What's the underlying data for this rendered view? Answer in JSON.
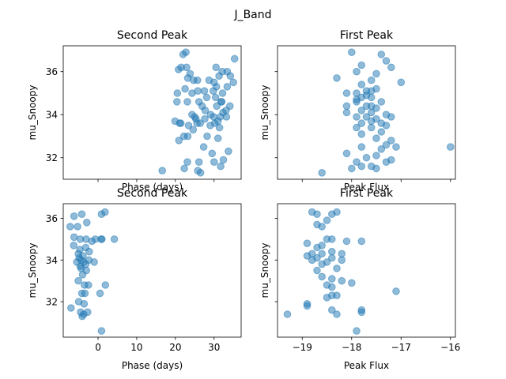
{
  "figure": {
    "suptitle": "J_Band"
  },
  "style": {
    "marker_color": "#1f77b4",
    "marker_alpha": 0.5
  },
  "chart_data": [
    {
      "type": "scatter",
      "title": "Second Peak",
      "xlabel": "Phase (days)",
      "ylabel": "mu_Snoopy",
      "xlim": [
        -9,
        37
      ],
      "ylim": [
        31.0,
        37.2
      ],
      "xticks": [
        0,
        10,
        20,
        30
      ],
      "xticklabels": [
        "",
        "",
        "",
        ""
      ],
      "yticks": [
        32,
        34,
        36
      ],
      "yticklabels": [
        "32",
        "34",
        "36"
      ],
      "points": [
        [
          16.6,
          31.4
        ],
        [
          22.0,
          36.8
        ],
        [
          22.7,
          36.9
        ],
        [
          20.8,
          36.1
        ],
        [
          21.5,
          36.2
        ],
        [
          22.9,
          36.2
        ],
        [
          23.8,
          35.9
        ],
        [
          23.2,
          35.7
        ],
        [
          24.7,
          35.6
        ],
        [
          25.7,
          35.6
        ],
        [
          20.4,
          34.6
        ],
        [
          22.5,
          35.2
        ],
        [
          24.3,
          35.0
        ],
        [
          25.8,
          35.1
        ],
        [
          23.1,
          34.6
        ],
        [
          26.1,
          34.6
        ],
        [
          27.5,
          35.1
        ],
        [
          28.1,
          34.8
        ],
        [
          26.9,
          34.4
        ],
        [
          27.7,
          34.2
        ],
        [
          19.9,
          33.7
        ],
        [
          21.1,
          33.6
        ],
        [
          21.4,
          33.6
        ],
        [
          23.4,
          33.5
        ],
        [
          24.3,
          34.0
        ],
        [
          25.0,
          33.9
        ],
        [
          25.3,
          33.8
        ],
        [
          25.6,
          33.6
        ],
        [
          26.4,
          33.6
        ],
        [
          29.1,
          34.0
        ],
        [
          29.9,
          33.9
        ],
        [
          30.2,
          33.6
        ],
        [
          31.0,
          33.7
        ],
        [
          31.6,
          33.9
        ],
        [
          32.3,
          34.1
        ],
        [
          33.1,
          34.2
        ],
        [
          34.1,
          34.4
        ],
        [
          30.7,
          34.4
        ],
        [
          30.4,
          34.8
        ],
        [
          30.6,
          35.3
        ],
        [
          31.8,
          34.6
        ],
        [
          32.2,
          35.0
        ],
        [
          30.0,
          35.5
        ],
        [
          31.3,
          35.8
        ],
        [
          33.4,
          35.3
        ],
        [
          35.0,
          35.5
        ],
        [
          34.2,
          35.8
        ],
        [
          30.5,
          36.2
        ],
        [
          32.1,
          36.0
        ],
        [
          33.4,
          36.0
        ],
        [
          35.3,
          36.6
        ],
        [
          20.9,
          32.8
        ],
        [
          22.2,
          33.0
        ],
        [
          23.2,
          33.0
        ],
        [
          24.6,
          33.3
        ],
        [
          28.2,
          33.0
        ],
        [
          27.3,
          32.5
        ],
        [
          29.5,
          32.2
        ],
        [
          33.7,
          32.3
        ],
        [
          23.1,
          31.8
        ],
        [
          26.1,
          31.8
        ],
        [
          30.0,
          31.8
        ],
        [
          31.7,
          31.6
        ],
        [
          32.4,
          31.9
        ],
        [
          26.5,
          31.3
        ],
        [
          25.8,
          31.4
        ],
        [
          22.3,
          31.5
        ],
        [
          20.5,
          35.0
        ],
        [
          27.6,
          33.8
        ],
        [
          29.0,
          33.5
        ],
        [
          31.4,
          33.4
        ],
        [
          32.0,
          34.6
        ],
        [
          28.7,
          35.6
        ],
        [
          29.8,
          35.1
        ],
        [
          33.2,
          33.9
        ],
        [
          31.0,
          32.9
        ]
      ]
    },
    {
      "type": "scatter",
      "title": "First Peak",
      "xlabel": "Peak Flux",
      "ylabel": "mu_Snoopy",
      "xlim": [
        -19.5,
        -15.9
      ],
      "ylim": [
        31.0,
        37.2
      ],
      "xticks": [
        -19,
        -18,
        -17,
        -16
      ],
      "xticklabels": [
        "",
        "",
        "",
        ""
      ],
      "yticks": [
        32,
        34,
        36
      ],
      "yticklabels": [
        "",
        "",
        ""
      ],
      "points": [
        [
          -18.0,
          36.9
        ],
        [
          -17.4,
          36.8
        ],
        [
          -17.2,
          36.2
        ],
        [
          -17.8,
          36.3
        ],
        [
          -17.9,
          36.0
        ],
        [
          -17.5,
          35.9
        ],
        [
          -17.6,
          35.6
        ],
        [
          -17.0,
          35.5
        ],
        [
          -18.3,
          35.7
        ],
        [
          -17.8,
          35.4
        ],
        [
          -17.6,
          35.1
        ],
        [
          -17.7,
          35.1
        ],
        [
          -18.1,
          35.0
        ],
        [
          -17.9,
          35.0
        ],
        [
          -17.8,
          34.8
        ],
        [
          -17.6,
          34.8
        ],
        [
          -17.4,
          34.6
        ],
        [
          -17.9,
          34.6
        ],
        [
          -17.7,
          34.4
        ],
        [
          -18.1,
          34.4
        ],
        [
          -17.5,
          34.3
        ],
        [
          -17.8,
          34.2
        ],
        [
          -17.6,
          34.1
        ],
        [
          -17.3,
          34.0
        ],
        [
          -17.9,
          33.9
        ],
        [
          -18.1,
          34.1
        ],
        [
          -17.7,
          33.9
        ],
        [
          -17.5,
          33.8
        ],
        [
          -17.6,
          33.7
        ],
        [
          -17.4,
          33.6
        ],
        [
          -17.8,
          33.6
        ],
        [
          -17.2,
          33.9
        ],
        [
          -17.3,
          33.5
        ],
        [
          -17.9,
          33.4
        ],
        [
          -17.6,
          33.4
        ],
        [
          -17.4,
          33.2
        ],
        [
          -17.8,
          33.1
        ],
        [
          -17.2,
          32.8
        ],
        [
          -17.5,
          32.9
        ],
        [
          -17.3,
          32.6
        ],
        [
          -17.1,
          32.5
        ],
        [
          -17.8,
          32.5
        ],
        [
          -17.4,
          32.4
        ],
        [
          -18.1,
          32.2
        ],
        [
          -17.7,
          32.0
        ],
        [
          -17.9,
          31.8
        ],
        [
          -17.6,
          31.6
        ],
        [
          -17.3,
          31.8
        ],
        [
          -17.5,
          31.5
        ],
        [
          -17.8,
          31.6
        ],
        [
          -18.0,
          31.5
        ],
        [
          -17.2,
          31.9
        ],
        [
          -16.0,
          32.5
        ],
        [
          -18.6,
          31.3
        ],
        [
          -17.5,
          32.1
        ],
        [
          -17.7,
          34.9
        ],
        [
          -17.5,
          35.2
        ],
        [
          -17.3,
          36.5
        ],
        [
          -17.9,
          34.7
        ],
        [
          -17.6,
          34.4
        ]
      ]
    },
    {
      "type": "scatter",
      "title": "Second Peak",
      "xlabel": "Phase (days)",
      "ylabel": "mu_Snoopy",
      "xlim": [
        -9,
        37
      ],
      "ylim": [
        30.3,
        36.7
      ],
      "xticks": [
        0,
        10,
        20,
        30
      ],
      "xticklabels": [
        "0",
        "10",
        "20",
        "30"
      ],
      "yticks": [
        32,
        34,
        36
      ],
      "yticklabels": [
        "32",
        "34",
        "36"
      ],
      "points": [
        [
          -6.2,
          36.1
        ],
        [
          -4.2,
          36.2
        ],
        [
          -2.9,
          35.8
        ],
        [
          0.9,
          36.2
        ],
        [
          1.8,
          36.3
        ],
        [
          -7.2,
          35.6
        ],
        [
          -5.3,
          35.6
        ],
        [
          -6.2,
          35.1
        ],
        [
          -4.6,
          35.0
        ],
        [
          -3.1,
          35.0
        ],
        [
          -1.6,
          34.9
        ],
        [
          -0.7,
          35.0
        ],
        [
          0.8,
          35.0
        ],
        [
          1.0,
          35.0
        ],
        [
          -6.3,
          34.7
        ],
        [
          -4.7,
          34.5
        ],
        [
          -3.2,
          34.6
        ],
        [
          -2.3,
          34.4
        ],
        [
          -5.1,
          34.3
        ],
        [
          -4.9,
          34.1
        ],
        [
          -4.4,
          34.0
        ],
        [
          -3.9,
          34.2
        ],
        [
          -5.5,
          33.9
        ],
        [
          -4.6,
          33.7
        ],
        [
          -3.7,
          33.9
        ],
        [
          -2.4,
          34.0
        ],
        [
          -1.0,
          33.9
        ],
        [
          -3.0,
          33.5
        ],
        [
          -4.0,
          33.3
        ],
        [
          -4.4,
          33.6
        ],
        [
          -5.1,
          33.0
        ],
        [
          -3.5,
          32.8
        ],
        [
          -2.5,
          32.8
        ],
        [
          -4.2,
          32.4
        ],
        [
          -3.4,
          32.4
        ],
        [
          -3.6,
          31.9
        ],
        [
          -4.5,
          31.5
        ],
        [
          -4.1,
          31.3
        ],
        [
          -3.7,
          31.4
        ],
        [
          -7.0,
          31.7
        ],
        [
          0.5,
          32.4
        ],
        [
          1.9,
          32.8
        ],
        [
          4.2,
          35.0
        ],
        [
          0.9,
          30.6
        ],
        [
          -2.7,
          31.5
        ],
        [
          -3.2,
          33.8
        ],
        [
          -5.0,
          32.0
        ]
      ]
    },
    {
      "type": "scatter",
      "title": "First Peak",
      "xlabel": "Peak Flux",
      "ylabel": "mu_Snoopy",
      "xlim": [
        -19.5,
        -15.9
      ],
      "ylim": [
        30.3,
        36.7
      ],
      "xticks": [
        -19,
        -18,
        -17,
        -16
      ],
      "xticklabels": [
        "−19",
        "−18",
        "−17",
        "−16"
      ],
      "yticks": [
        32,
        34,
        36
      ],
      "yticklabels": [
        "",
        "",
        ""
      ],
      "points": [
        [
          -18.8,
          36.3
        ],
        [
          -18.7,
          36.2
        ],
        [
          -18.4,
          36.2
        ],
        [
          -18.3,
          36.3
        ],
        [
          -18.5,
          35.9
        ],
        [
          -18.7,
          35.7
        ],
        [
          -18.6,
          35.6
        ],
        [
          -18.5,
          35.0
        ],
        [
          -18.4,
          35.0
        ],
        [
          -18.1,
          34.9
        ],
        [
          -17.8,
          34.9
        ],
        [
          -18.9,
          34.8
        ],
        [
          -18.7,
          34.6
        ],
        [
          -18.8,
          34.3
        ],
        [
          -18.6,
          34.3
        ],
        [
          -18.7,
          34.1
        ],
        [
          -18.4,
          34.1
        ],
        [
          -18.9,
          34.2
        ],
        [
          -18.6,
          33.8
        ],
        [
          -18.4,
          34.4
        ],
        [
          -18.2,
          34.3
        ],
        [
          -18.8,
          34.0
        ],
        [
          -18.5,
          33.9
        ],
        [
          -18.7,
          33.5
        ],
        [
          -18.6,
          33.2
        ],
        [
          -18.3,
          33.6
        ],
        [
          -18.4,
          33.1
        ],
        [
          -18.2,
          33.0
        ],
        [
          -18.5,
          32.8
        ],
        [
          -18.4,
          32.7
        ],
        [
          -18.3,
          32.3
        ],
        [
          -18.4,
          32.3
        ],
        [
          -18.0,
          32.9
        ],
        [
          -18.9,
          31.9
        ],
        [
          -19.3,
          31.4
        ],
        [
          -18.9,
          31.8
        ],
        [
          -18.4,
          31.6
        ],
        [
          -18.3,
          31.4
        ],
        [
          -17.8,
          31.6
        ],
        [
          -17.8,
          31.5
        ],
        [
          -17.9,
          30.6
        ],
        [
          -17.1,
          32.5
        ],
        [
          -18.5,
          32.2
        ],
        [
          -18.6,
          34.7
        ],
        [
          -18.2,
          34.0
        ]
      ]
    }
  ]
}
